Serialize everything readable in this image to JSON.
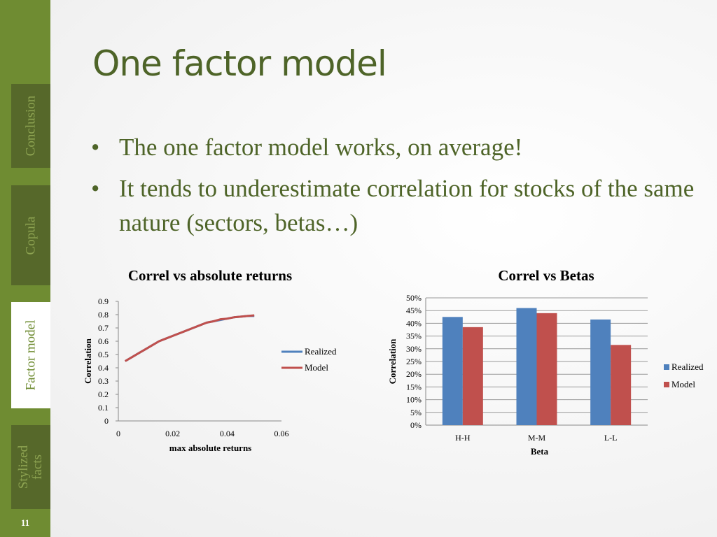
{
  "slide": {
    "title": "One factor model",
    "page_number": "11",
    "bullets": [
      "The one factor model works, on average!",
      "It tends to underestimate correlation for stocks of the same nature (sectors, betas…)"
    ]
  },
  "sidebar": {
    "items": [
      {
        "label": "Conclusion",
        "active": false
      },
      {
        "label": "Copula",
        "active": false
      },
      {
        "label": "Factor model",
        "active": true
      },
      {
        "label_lines": [
          "Stylized",
          "facts"
        ],
        "active": false
      }
    ]
  },
  "colors": {
    "sidebar": "#6f8c32",
    "tab": "#56682a",
    "text_green": "#4e6428",
    "realized": "#4f81bd",
    "model": "#c0504d"
  },
  "chart_data": [
    {
      "type": "line",
      "title": "Correl vs absolute returns",
      "xlabel": "max absolute returns",
      "ylabel": "Correlation",
      "xlim": [
        0,
        0.06
      ],
      "ylim": [
        0,
        0.9
      ],
      "x_ticks": [
        "0",
        "0.02",
        "0.04",
        "0.06"
      ],
      "y_ticks": [
        "0",
        "0.1",
        "0.2",
        "0.3",
        "0.4",
        "0.5",
        "0.6",
        "0.7",
        "0.8",
        "0.9"
      ],
      "legend": "right",
      "grid": false,
      "x": [
        0.0025,
        0.005,
        0.0075,
        0.01,
        0.0125,
        0.015,
        0.0175,
        0.02,
        0.0225,
        0.025,
        0.0275,
        0.03,
        0.0325,
        0.035,
        0.0375,
        0.04,
        0.0425,
        0.045,
        0.0475,
        0.05
      ],
      "series": [
        {
          "name": "Realized",
          "values": [
            0.45,
            0.48,
            0.51,
            0.54,
            0.57,
            0.6,
            0.62,
            0.64,
            0.66,
            0.68,
            0.7,
            0.72,
            0.74,
            0.75,
            0.76,
            0.77,
            0.78,
            0.785,
            0.79,
            0.79
          ]
        },
        {
          "name": "Model",
          "values": [
            0.45,
            0.48,
            0.51,
            0.54,
            0.57,
            0.6,
            0.62,
            0.64,
            0.66,
            0.68,
            0.7,
            0.72,
            0.74,
            0.75,
            0.765,
            0.77,
            0.78,
            0.785,
            0.79,
            0.795
          ]
        }
      ]
    },
    {
      "type": "bar",
      "title": "Correl vs Betas",
      "xlabel": "Beta",
      "ylabel": "Correlation",
      "ylim": [
        0,
        0.5
      ],
      "y_ticks": [
        "0%",
        "5%",
        "10%",
        "15%",
        "20%",
        "25%",
        "30%",
        "35%",
        "40%",
        "45%",
        "50%"
      ],
      "categories": [
        "H-H",
        "M-M",
        "L-L"
      ],
      "legend": "right",
      "grid": true,
      "series": [
        {
          "name": "Realized",
          "values": [
            0.425,
            0.46,
            0.415
          ]
        },
        {
          "name": "Model",
          "values": [
            0.385,
            0.44,
            0.315
          ]
        }
      ]
    }
  ]
}
